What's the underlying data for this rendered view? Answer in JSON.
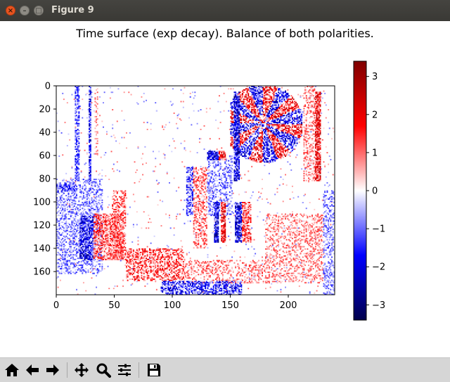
{
  "window": {
    "title": "Figure 9",
    "close_glyph": "×",
    "min_glyph": "–",
    "max_glyph": "□"
  },
  "toolbar": {
    "buttons": [
      {
        "name": "home-icon",
        "tooltip": "Home"
      },
      {
        "name": "back-arrow-icon",
        "tooltip": "Back"
      },
      {
        "name": "forward-arrow-icon",
        "tooltip": "Forward"
      },
      {
        "name": "pan-icon",
        "tooltip": "Pan"
      },
      {
        "name": "zoom-icon",
        "tooltip": "Zoom"
      },
      {
        "name": "subplots-icon",
        "tooltip": "Subplots"
      },
      {
        "name": "save-icon",
        "tooltip": "Save"
      }
    ]
  },
  "chart_data": {
    "type": "heatmap",
    "title": "Time surface (exp decay). Balance of both polarities.",
    "xlabel": "",
    "ylabel": "",
    "xlim": [
      0,
      240
    ],
    "ylim": [
      180,
      0
    ],
    "xticks": [
      "0",
      "50",
      "100",
      "150",
      "200"
    ],
    "yticks": [
      "0",
      "20",
      "40",
      "60",
      "80",
      "100",
      "120",
      "140",
      "160"
    ],
    "colormap": "seismic",
    "colorbar": {
      "range": [
        -3.4,
        3.4
      ],
      "ticks": [
        "3",
        "2",
        "1",
        "0",
        "−1",
        "−2",
        "−3"
      ]
    },
    "colors": {
      "negative": "#0000ff",
      "zero": "#ffffff",
      "positive": "#ff0000",
      "min": "#00004c",
      "max": "#7f0000"
    }
  }
}
